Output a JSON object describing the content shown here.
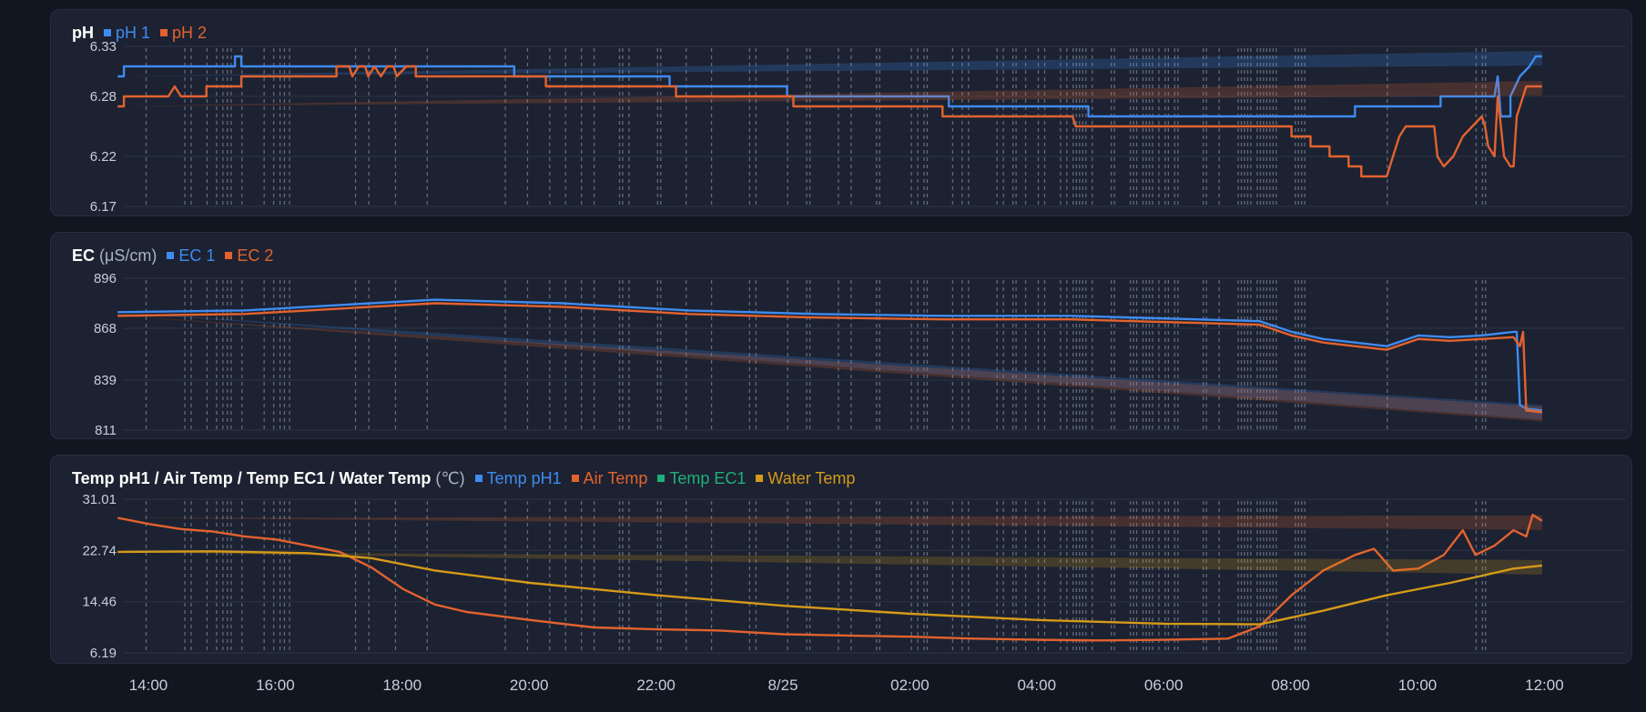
{
  "colors": {
    "blue": "#3f8bf0",
    "orange": "#e3622f",
    "green": "#1fb07a",
    "yellow": "#d69a18"
  },
  "x_ticks": [
    "14:00",
    "16:00",
    "18:00",
    "20:00",
    "22:00",
    "8/25",
    "02:00",
    "04:00",
    "06:00",
    "08:00",
    "10:00",
    "12:00"
  ],
  "chart_data": [
    {
      "type": "line",
      "title": "pH",
      "unit": "",
      "x_range": [
        "8/24 13:30",
        "8/25 13:10"
      ],
      "ylim": [
        6.17,
        6.33
      ],
      "y_ticks": [
        "6.33",
        "6.28",
        "6.22",
        "6.17"
      ],
      "grid": true,
      "legend_position": "top-left",
      "event_markers_hours": [
        13.95,
        14.56,
        14.66,
        14.91,
        15.06,
        15.16,
        15.23,
        15.29,
        15.46,
        15.81,
        15.96,
        16.06,
        16.13,
        16.21,
        17.25,
        17.46,
        17.88,
        18.38,
        19.61,
        19.96,
        20.31,
        20.56,
        20.81,
        21.01,
        21.41,
        21.46,
        21.56,
        22.01,
        22.06,
        22.46,
        22.86,
        23.46,
        23.56,
        24.06,
        24.36,
        24.41,
        24.86,
        25.06,
        25.46,
        25.51,
        26.01,
        26.11,
        26.21,
        26.26,
        26.66,
        26.81,
        26.91,
        27.36,
        27.46,
        27.61,
        27.66,
        27.81,
        28.01,
        28.11,
        28.36,
        28.46,
        28.56,
        28.61,
        28.66,
        28.71,
        28.76,
        28.86,
        29.16,
        29.21,
        29.46,
        29.51,
        29.56,
        29.66,
        29.71,
        29.76,
        29.81,
        29.91,
        30.01,
        30.06,
        30.16,
        30.21,
        30.61,
        30.66,
        30.86,
        31.16,
        31.21,
        31.26,
        31.31,
        31.36,
        31.46,
        31.51,
        31.56,
        31.61,
        31.66,
        31.71,
        31.76,
        32.06,
        32.11,
        32.16,
        32.21,
        33.51,
        34.91,
        35.01,
        35.06
      ],
      "series": [
        {
          "name": "pH 1",
          "color": "#3f8bf0",
          "points": [
            [
              13.5,
              6.3
            ],
            [
              13.6,
              6.3
            ],
            [
              13.6,
              6.31
            ],
            [
              15.35,
              6.31
            ],
            [
              15.35,
              6.32
            ],
            [
              15.45,
              6.32
            ],
            [
              15.45,
              6.31
            ],
            [
              19.75,
              6.31
            ],
            [
              19.75,
              6.3
            ],
            [
              22.2,
              6.3
            ],
            [
              22.2,
              6.29
            ],
            [
              24.05,
              6.29
            ],
            [
              24.05,
              6.28
            ],
            [
              26.6,
              6.28
            ],
            [
              26.6,
              6.27
            ],
            [
              28.8,
              6.27
            ],
            [
              28.8,
              6.26
            ],
            [
              33.0,
              6.26
            ],
            [
              33.0,
              6.27
            ],
            [
              34.35,
              6.27
            ],
            [
              34.35,
              6.28
            ],
            [
              35.2,
              6.28
            ],
            [
              35.25,
              6.3
            ],
            [
              35.3,
              6.26
            ],
            [
              35.45,
              6.26
            ],
            [
              35.45,
              6.28
            ],
            [
              35.6,
              6.3
            ],
            [
              35.75,
              6.31
            ],
            [
              35.85,
              6.32
            ],
            [
              35.95,
              6.32
            ]
          ]
        },
        {
          "name": "pH 2",
          "color": "#e3622f",
          "points": [
            [
              13.5,
              6.27
            ],
            [
              13.6,
              6.27
            ],
            [
              13.6,
              6.28
            ],
            [
              14.3,
              6.28
            ],
            [
              14.4,
              6.29
            ],
            [
              14.5,
              6.28
            ],
            [
              14.9,
              6.28
            ],
            [
              14.9,
              6.29
            ],
            [
              15.45,
              6.29
            ],
            [
              15.45,
              6.3
            ],
            [
              16.95,
              6.3
            ],
            [
              16.95,
              6.31
            ],
            [
              17.15,
              6.31
            ],
            [
              17.2,
              6.3
            ],
            [
              17.3,
              6.31
            ],
            [
              17.4,
              6.31
            ],
            [
              17.45,
              6.3
            ],
            [
              17.55,
              6.31
            ],
            [
              17.65,
              6.3
            ],
            [
              17.75,
              6.31
            ],
            [
              17.85,
              6.31
            ],
            [
              17.9,
              6.3
            ],
            [
              18.05,
              6.31
            ],
            [
              18.2,
              6.31
            ],
            [
              18.2,
              6.3
            ],
            [
              20.25,
              6.3
            ],
            [
              20.25,
              6.29
            ],
            [
              22.3,
              6.29
            ],
            [
              22.3,
              6.28
            ],
            [
              24.15,
              6.28
            ],
            [
              24.15,
              6.27
            ],
            [
              26.5,
              6.27
            ],
            [
              26.5,
              6.26
            ],
            [
              28.55,
              6.26
            ],
            [
              28.6,
              6.25
            ],
            [
              28.75,
              6.25
            ],
            [
              28.75,
              6.25
            ],
            [
              32.0,
              6.25
            ],
            [
              32.0,
              6.24
            ],
            [
              32.3,
              6.24
            ],
            [
              32.3,
              6.23
            ],
            [
              32.6,
              6.23
            ],
            [
              32.6,
              6.22
            ],
            [
              32.9,
              6.22
            ],
            [
              32.9,
              6.21
            ],
            [
              33.1,
              6.21
            ],
            [
              33.1,
              6.2
            ],
            [
              33.5,
              6.2
            ],
            [
              33.6,
              6.22
            ],
            [
              33.7,
              6.24
            ],
            [
              33.8,
              6.25
            ],
            [
              34.25,
              6.25
            ],
            [
              34.3,
              6.22
            ],
            [
              34.4,
              6.21
            ],
            [
              34.55,
              6.22
            ],
            [
              34.7,
              6.24
            ],
            [
              34.85,
              6.25
            ],
            [
              35.0,
              6.26
            ],
            [
              35.05,
              6.25
            ],
            [
              35.1,
              6.23
            ],
            [
              35.2,
              6.22
            ],
            [
              35.25,
              6.28
            ],
            [
              35.35,
              6.22
            ],
            [
              35.45,
              6.21
            ],
            [
              35.5,
              6.21
            ],
            [
              35.55,
              6.26
            ],
            [
              35.7,
              6.29
            ],
            [
              35.95,
              6.29
            ]
          ]
        }
      ]
    },
    {
      "type": "line",
      "title": "EC",
      "unit": "(μS/cm)",
      "x_range": [
        "8/24 13:30",
        "8/25 13:10"
      ],
      "ylim": [
        811,
        896
      ],
      "y_ticks": [
        "896",
        "868",
        "839",
        "811"
      ],
      "grid": true,
      "legend_position": "top-left",
      "series": [
        {
          "name": "EC 1",
          "color": "#3f8bf0",
          "points": [
            [
              13.5,
              877
            ],
            [
              15.5,
              878
            ],
            [
              16.5,
              880
            ],
            [
              18.5,
              884
            ],
            [
              20.5,
              882
            ],
            [
              22.5,
              878
            ],
            [
              24.5,
              876
            ],
            [
              26.5,
              875
            ],
            [
              28.5,
              875
            ],
            [
              30.5,
              873
            ],
            [
              31.5,
              872
            ],
            [
              32.0,
              866
            ],
            [
              32.5,
              862
            ],
            [
              33.0,
              860
            ],
            [
              33.5,
              858
            ],
            [
              34.0,
              864
            ],
            [
              34.5,
              863
            ],
            [
              35.0,
              864
            ],
            [
              35.5,
              866
            ],
            [
              35.55,
              866
            ],
            [
              35.6,
              825
            ],
            [
              35.7,
              823
            ],
            [
              35.95,
              822
            ]
          ]
        },
        {
          "name": "EC 2",
          "color": "#e3622f",
          "points": [
            [
              13.5,
              875
            ],
            [
              15.5,
              876
            ],
            [
              16.5,
              878
            ],
            [
              18.5,
              882
            ],
            [
              20.5,
              880
            ],
            [
              22.5,
              876
            ],
            [
              24.5,
              874
            ],
            [
              26.5,
              873
            ],
            [
              28.5,
              873
            ],
            [
              30.5,
              871
            ],
            [
              31.5,
              870
            ],
            [
              32.0,
              864
            ],
            [
              32.5,
              860
            ],
            [
              33.0,
              858
            ],
            [
              33.5,
              856
            ],
            [
              34.0,
              862
            ],
            [
              34.5,
              861
            ],
            [
              35.0,
              862
            ],
            [
              35.5,
              863
            ],
            [
              35.6,
              858
            ],
            [
              35.65,
              866
            ],
            [
              35.7,
              822
            ],
            [
              35.95,
              821
            ]
          ]
        }
      ]
    },
    {
      "type": "line",
      "title": "Temp pH1 / Air Temp / Temp EC1 / Water Temp",
      "unit": "(℃)",
      "x_range": [
        "8/24 13:30",
        "8/25 13:10"
      ],
      "ylim": [
        6.19,
        31.01
      ],
      "y_ticks": [
        "31.01",
        "22.74",
        "14.46",
        "6.19"
      ],
      "grid": true,
      "legend_position": "top-left",
      "series": [
        {
          "name": "Temp pH1",
          "color": "#3f8bf0",
          "points": []
        },
        {
          "name": "Air Temp",
          "color": "#e3622f",
          "points": [
            [
              13.5,
              28.0
            ],
            [
              14.0,
              27.0
            ],
            [
              14.5,
              26.2
            ],
            [
              15.0,
              25.8
            ],
            [
              15.5,
              25.0
            ],
            [
              16.0,
              24.5
            ],
            [
              16.5,
              23.5
            ],
            [
              17.0,
              22.5
            ],
            [
              17.5,
              20.0
            ],
            [
              18.0,
              16.5
            ],
            [
              18.5,
              14.0
            ],
            [
              19.0,
              12.8
            ],
            [
              20.0,
              11.5
            ],
            [
              21.0,
              10.3
            ],
            [
              22.0,
              10.0
            ],
            [
              23.0,
              9.8
            ],
            [
              24.0,
              9.2
            ],
            [
              25.0,
              9.0
            ],
            [
              26.0,
              8.8
            ],
            [
              27.0,
              8.5
            ],
            [
              28.0,
              8.3
            ],
            [
              29.0,
              8.2
            ],
            [
              30.0,
              8.3
            ],
            [
              31.0,
              8.5
            ],
            [
              31.5,
              10.5
            ],
            [
              32.0,
              15.5
            ],
            [
              32.5,
              19.5
            ],
            [
              33.0,
              22.0
            ],
            [
              33.3,
              23.0
            ],
            [
              33.6,
              19.5
            ],
            [
              34.0,
              19.8
            ],
            [
              34.4,
              22.0
            ],
            [
              34.7,
              26.0
            ],
            [
              34.9,
              22.0
            ],
            [
              35.2,
              23.5
            ],
            [
              35.5,
              26.0
            ],
            [
              35.7,
              25.0
            ],
            [
              35.8,
              28.5
            ],
            [
              35.95,
              27.5
            ]
          ]
        },
        {
          "name": "Temp EC1",
          "color": "#1fb07a",
          "points": []
        },
        {
          "name": "Water Temp",
          "color": "#d69a18",
          "points": [
            [
              13.5,
              22.5
            ],
            [
              15.0,
              22.6
            ],
            [
              16.5,
              22.3
            ],
            [
              17.5,
              21.5
            ],
            [
              18.5,
              19.5
            ],
            [
              20.0,
              17.5
            ],
            [
              22.0,
              15.5
            ],
            [
              24.0,
              13.8
            ],
            [
              26.0,
              12.5
            ],
            [
              28.0,
              11.5
            ],
            [
              30.0,
              10.9
            ],
            [
              31.5,
              10.8
            ],
            [
              32.5,
              13.0
            ],
            [
              33.5,
              15.5
            ],
            [
              34.5,
              17.5
            ],
            [
              35.5,
              19.8
            ],
            [
              35.95,
              20.3
            ]
          ]
        }
      ]
    }
  ]
}
